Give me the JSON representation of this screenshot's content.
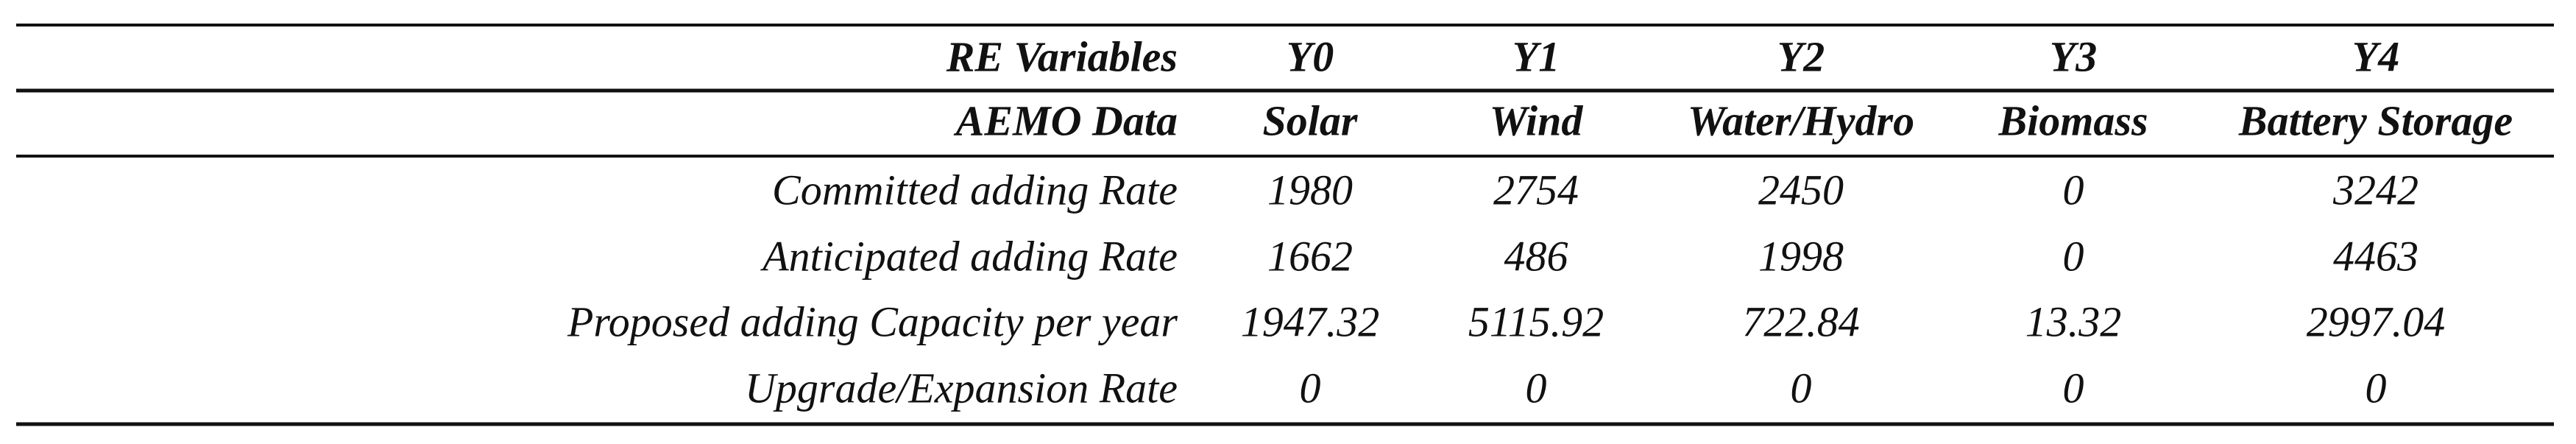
{
  "table": {
    "header_rows": [
      [
        "RE Variables",
        "Y0",
        "Y1",
        "Y2",
        "Y3",
        "Y4"
      ],
      [
        "AEMO Data",
        "Solar",
        "Wind",
        "Water/Hydro",
        "Biomass",
        "Battery Storage"
      ]
    ],
    "rows": [
      [
        "Committed adding Rate",
        "1980",
        "2754",
        "2450",
        "0",
        "3242"
      ],
      [
        "Anticipated adding Rate",
        "1662",
        "486",
        "1998",
        "0",
        "4463"
      ],
      [
        "Proposed adding Capacity per year",
        "1947.32",
        "5115.92",
        "722.84",
        "13.32",
        "2997.04"
      ],
      [
        "Upgrade/Expansion Rate",
        "0",
        "0",
        "0",
        "0",
        "0"
      ]
    ]
  }
}
